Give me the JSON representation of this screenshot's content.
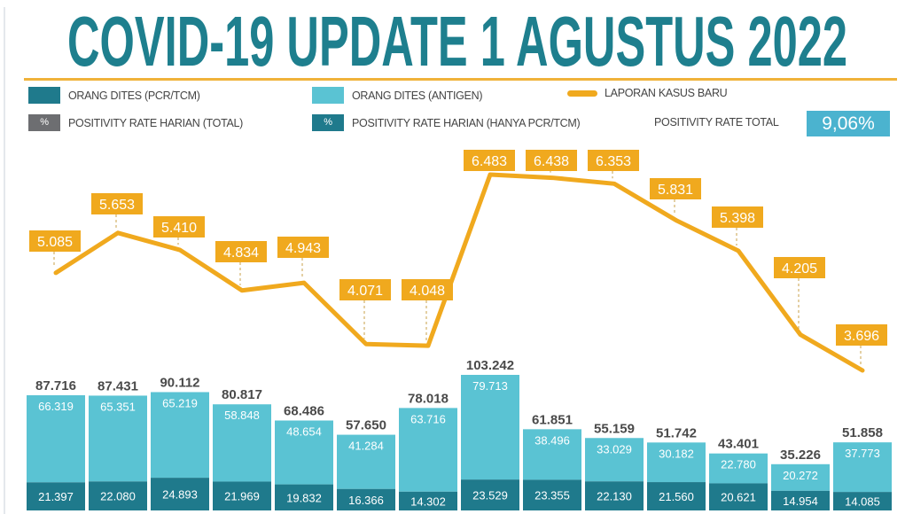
{
  "title": "COVID-19 UPDATE 1 AGUSTUS 2022",
  "legend": {
    "pcr": "ORANG DITES (PCR/TCM)",
    "antigen": "ORANG DITES (ANTIGEN)",
    "cases": "LAPORAN KASUS BARU",
    "pct_symbol": "%",
    "rate_total": "POSITIVITY RATE HARIAN (TOTAL)",
    "rate_pcr": "POSITIVITY RATE HARIAN (HANYA PCR/TCM)",
    "positivity_total_label": "POSITIVITY RATE TOTAL",
    "positivity_total_value": "9,06%"
  },
  "colors": {
    "pcr": "#1f7a8c",
    "antigen": "#5ac3d3",
    "cases": "#f0a91e",
    "title": "#1e7f8e",
    "gray": "#6d6e71"
  },
  "chart_data": {
    "type": "bar+line",
    "title": "COVID-19 UPDATE 1 AGUSTUS 2022",
    "series": [
      {
        "name": "ORANG DITES (PCR/TCM)",
        "type": "stacked-bar",
        "values": [
          21397,
          22080,
          24893,
          21969,
          19832,
          16366,
          14302,
          23529,
          23355,
          22130,
          21560,
          20621,
          14954,
          14085
        ],
        "labels": [
          "21.397",
          "22.080",
          "24.893",
          "21.969",
          "19.832",
          "16.366",
          "14.302",
          "23.529",
          "23.355",
          "22.130",
          "21.560",
          "20.621",
          "14.954",
          "14.085"
        ]
      },
      {
        "name": "ORANG DITES (ANTIGEN)",
        "type": "stacked-bar",
        "values": [
          66319,
          65351,
          65219,
          58848,
          48654,
          41284,
          63716,
          79713,
          38496,
          33029,
          30182,
          22780,
          20272,
          37773
        ],
        "labels": [
          "66.319",
          "65.351",
          "65.219",
          "58.848",
          "48.654",
          "41.284",
          "63.716",
          "79.713",
          "38.496",
          "33.029",
          "30.182",
          "22.780",
          "20.272",
          "37.773"
        ]
      },
      {
        "name": "LAPORAN KASUS BARU",
        "type": "line",
        "values": [
          5085,
          5653,
          5410,
          4834,
          4943,
          4071,
          4048,
          6483,
          6438,
          6353,
          5831,
          5398,
          4205,
          3696
        ],
        "labels": [
          "5.085",
          "5.653",
          "5.410",
          "4.834",
          "4.943",
          "4.071",
          "4.048",
          "6.483",
          "6.438",
          "6.353",
          "5.831",
          "5.398",
          "4.205",
          "3.696"
        ]
      }
    ],
    "totals": [
      87716,
      87431,
      90112,
      80817,
      68486,
      57650,
      78018,
      103242,
      61851,
      55159,
      51742,
      43401,
      35226,
      51858
    ],
    "total_labels": [
      "87.716",
      "87.431",
      "90.112",
      "80.817",
      "68.486",
      "57.650",
      "78.018",
      "103.242",
      "61.851",
      "55.159",
      "51.742",
      "43.401",
      "35.226",
      "51.858"
    ],
    "xlabel": "",
    "ylabel": ""
  }
}
